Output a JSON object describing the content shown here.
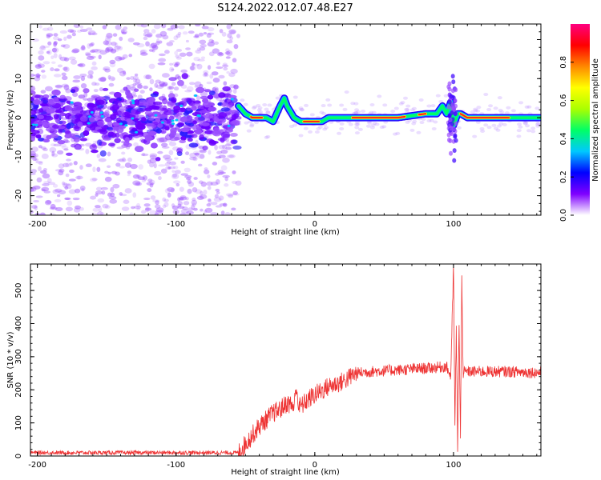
{
  "title": "S124.2022.012.07.48.E27",
  "chart_data": [
    {
      "type": "heatmap",
      "xlabel": "Height of straight line (km)",
      "ylabel": "Frequency (Hz)",
      "xlim": [
        -205,
        163
      ],
      "ylim": [
        -25,
        24
      ],
      "xticks": [
        -200,
        -100,
        0,
        100
      ],
      "yticks": [
        -20,
        -10,
        0,
        10,
        20
      ],
      "colorbar": {
        "label": "Normalized spectral amplitude",
        "range": [
          0,
          1
        ],
        "ticks": [
          "0.0",
          "0.2",
          "0.4",
          "0.6",
          "0.8"
        ],
        "colors": [
          "#ffffff",
          "#7f00ff",
          "#0000ff",
          "#00c8ff",
          "#00ff66",
          "#aaff00",
          "#ffff00",
          "#ff8800",
          "#ff0000",
          "#ff0080"
        ]
      },
      "noise_region": {
        "x_range": [
          -205,
          -55
        ],
        "band_center_hz": 0,
        "band_halfwidth_hz": 5
      },
      "signal_track": {
        "x": [
          -55,
          -50,
          -45,
          -40,
          -35,
          -30,
          -25,
          -22,
          -20,
          -15,
          -10,
          -5,
          0,
          5,
          10,
          20,
          30,
          40,
          60,
          80,
          88,
          92,
          95,
          98,
          100,
          103,
          105,
          110,
          120,
          140,
          163
        ],
        "y": [
          3,
          1,
          0,
          0,
          0,
          -1,
          3,
          5,
          3,
          0,
          -1,
          -1,
          -1,
          -1,
          0,
          0,
          0,
          0,
          0,
          1,
          1,
          3,
          1,
          4,
          -2,
          1,
          1,
          0,
          0,
          0,
          0
        ]
      }
    },
    {
      "type": "line",
      "xlabel": "Height of straight line (km)",
      "ylabel": "SNR (10 * v/v)",
      "xlim": [
        -205,
        163
      ],
      "ylim": [
        0,
        580
      ],
      "xticks": [
        -200,
        -100,
        0,
        100
      ],
      "yticks": [
        0,
        100,
        200,
        300,
        400,
        500
      ],
      "color": "#ee3333",
      "series_shape": {
        "x": [
          -205,
          -55,
          -40,
          -35,
          -30,
          -25,
          -20,
          -15,
          -13,
          -12,
          -10,
          -5,
          0,
          10,
          20,
          30,
          40,
          60,
          80,
          95,
          98,
          100,
          101,
          102,
          103,
          104,
          105,
          106,
          107,
          110,
          120,
          140,
          163
        ],
        "y": [
          10,
          10,
          90,
          110,
          130,
          140,
          160,
          150,
          215,
          150,
          150,
          170,
          185,
          210,
          225,
          250,
          255,
          260,
          265,
          270,
          240,
          575,
          100,
          380,
          30,
          400,
          50,
          535,
          250,
          255,
          255,
          255,
          252
        ]
      }
    }
  ]
}
